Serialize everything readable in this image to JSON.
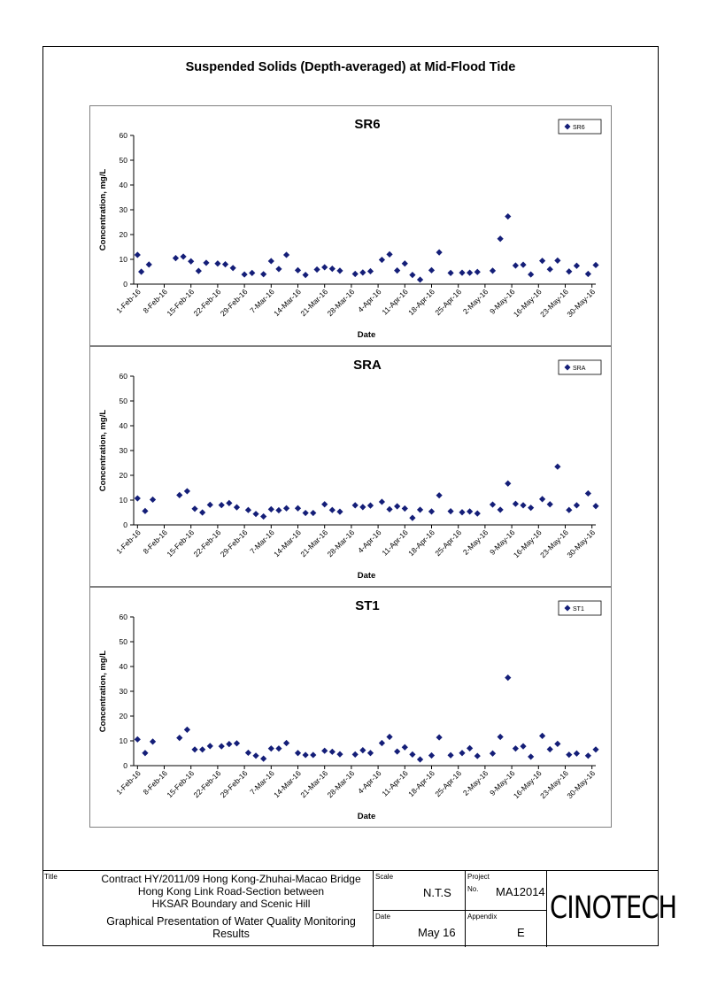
{
  "page_title": "Suspended Solids (Depth-averaged) at Mid-Flood Tide",
  "colors": {
    "marker": "#141e78",
    "axis": "#000000",
    "panel_border": "#808080"
  },
  "chart_data": [
    {
      "type": "scatter",
      "title": "SR6",
      "xlabel": "Date",
      "ylabel": "Concentration, mg/L",
      "ylim": [
        0,
        60
      ],
      "yticks": [
        "0",
        "10",
        "20",
        "30",
        "40",
        "50",
        "60"
      ],
      "xlim": [
        "2016-01-31",
        "2016-05-31"
      ],
      "xticks": [
        "1-Feb-16",
        "8-Feb-16",
        "15-Feb-16",
        "22-Feb-16",
        "29-Feb-16",
        "7-Mar-16",
        "14-Mar-16",
        "21-Mar-16",
        "28-Mar-16",
        "4-Apr-16",
        "11-Apr-16",
        "18-Apr-16",
        "25-Apr-16",
        "2-May-16",
        "9-May-16",
        "16-May-16",
        "23-May-16",
        "30-May-16"
      ],
      "legend": "top-right",
      "grid": false,
      "series": [
        {
          "name": "SR6",
          "x": [
            "2016-02-01",
            "2016-02-02",
            "2016-02-04",
            "2016-02-11",
            "2016-02-13",
            "2016-02-15",
            "2016-02-17",
            "2016-02-19",
            "2016-02-22",
            "2016-02-24",
            "2016-02-26",
            "2016-02-29",
            "2016-03-02",
            "2016-03-05",
            "2016-03-07",
            "2016-03-09",
            "2016-03-11",
            "2016-03-14",
            "2016-03-16",
            "2016-03-19",
            "2016-03-21",
            "2016-03-23",
            "2016-03-25",
            "2016-03-29",
            "2016-03-31",
            "2016-04-02",
            "2016-04-05",
            "2016-04-07",
            "2016-04-09",
            "2016-04-11",
            "2016-04-13",
            "2016-04-15",
            "2016-04-18",
            "2016-04-20",
            "2016-04-23",
            "2016-04-26",
            "2016-04-28",
            "2016-04-30",
            "2016-05-04",
            "2016-05-06",
            "2016-05-08",
            "2016-05-10",
            "2016-05-12",
            "2016-05-14",
            "2016-05-17",
            "2016-05-19",
            "2016-05-21",
            "2016-05-24",
            "2016-05-26",
            "2016-05-29",
            "2016-05-31"
          ],
          "y": [
            11.8,
            5.0,
            7.9,
            10.5,
            11.1,
            9.2,
            5.3,
            8.6,
            8.3,
            8.0,
            6.5,
            3.9,
            4.5,
            4.0,
            9.3,
            6.1,
            11.8,
            5.6,
            3.7,
            5.9,
            6.8,
            6.2,
            5.4,
            4.1,
            4.7,
            5.2,
            9.8,
            12.0,
            5.5,
            8.3,
            3.7,
            1.8,
            5.6,
            12.8,
            4.5,
            4.6,
            4.6,
            4.9,
            5.4,
            18.3,
            27.3,
            7.5,
            7.8,
            3.9,
            9.4,
            6.0,
            9.5,
            5.1,
            7.4,
            4.1,
            7.7
          ]
        }
      ]
    },
    {
      "type": "scatter",
      "title": "SRA",
      "xlabel": "Date",
      "ylabel": "Concentration, mg/L",
      "ylim": [
        0,
        60
      ],
      "yticks": [
        "0",
        "10",
        "20",
        "30",
        "40",
        "50",
        "60"
      ],
      "xlim": [
        "2016-01-31",
        "2016-05-31"
      ],
      "xticks": [
        "1-Feb-16",
        "8-Feb-16",
        "15-Feb-16",
        "22-Feb-16",
        "29-Feb-16",
        "7-Mar-16",
        "14-Mar-16",
        "21-Mar-16",
        "28-Mar-16",
        "4-Apr-16",
        "11-Apr-16",
        "18-Apr-16",
        "25-Apr-16",
        "2-May-16",
        "9-May-16",
        "16-May-16",
        "23-May-16",
        "30-May-16"
      ],
      "legend": "top-right",
      "grid": false,
      "series": [
        {
          "name": "SRA",
          "x": [
            "2016-02-01",
            "2016-02-03",
            "2016-02-05",
            "2016-02-12",
            "2016-02-14",
            "2016-02-16",
            "2016-02-18",
            "2016-02-20",
            "2016-02-23",
            "2016-02-25",
            "2016-02-27",
            "2016-03-01",
            "2016-03-03",
            "2016-03-05",
            "2016-03-07",
            "2016-03-09",
            "2016-03-11",
            "2016-03-14",
            "2016-03-16",
            "2016-03-18",
            "2016-03-21",
            "2016-03-23",
            "2016-03-25",
            "2016-03-29",
            "2016-03-31",
            "2016-04-02",
            "2016-04-05",
            "2016-04-07",
            "2016-04-09",
            "2016-04-11",
            "2016-04-13",
            "2016-04-15",
            "2016-04-18",
            "2016-04-20",
            "2016-04-23",
            "2016-04-26",
            "2016-04-28",
            "2016-04-30",
            "2016-05-04",
            "2016-05-06",
            "2016-05-08",
            "2016-05-10",
            "2016-05-12",
            "2016-05-14",
            "2016-05-17",
            "2016-05-19",
            "2016-05-21",
            "2016-05-24",
            "2016-05-26",
            "2016-05-29",
            "2016-05-31"
          ],
          "y": [
            10.7,
            5.6,
            10.2,
            12.0,
            13.6,
            6.5,
            5.0,
            8.1,
            8.0,
            8.8,
            7.1,
            6.0,
            4.4,
            3.4,
            6.3,
            5.9,
            6.7,
            6.7,
            4.8,
            4.8,
            8.3,
            6.0,
            5.3,
            7.9,
            7.2,
            7.8,
            9.3,
            6.3,
            7.5,
            6.6,
            2.8,
            6.1,
            5.4,
            11.9,
            5.5,
            5.1,
            5.4,
            4.6,
            8.2,
            6.1,
            16.7,
            8.5,
            7.9,
            6.9,
            10.4,
            8.3,
            23.5,
            6.0,
            7.9,
            12.7,
            7.6
          ]
        }
      ]
    },
    {
      "type": "scatter",
      "title": "ST1",
      "xlabel": "Date",
      "ylabel": "Concentration, mg/L",
      "ylim": [
        0,
        60
      ],
      "yticks": [
        "0",
        "10",
        "20",
        "30",
        "40",
        "50",
        "60"
      ],
      "xlim": [
        "2016-01-31",
        "2016-05-31"
      ],
      "xticks": [
        "1-Feb-16",
        "8-Feb-16",
        "15-Feb-16",
        "22-Feb-16",
        "29-Feb-16",
        "7-Mar-16",
        "14-Mar-16",
        "21-Mar-16",
        "28-Mar-16",
        "4-Apr-16",
        "11-Apr-16",
        "18-Apr-16",
        "25-Apr-16",
        "2-May-16",
        "9-May-16",
        "16-May-16",
        "23-May-16",
        "30-May-16"
      ],
      "legend": "top-right",
      "grid": false,
      "series": [
        {
          "name": "ST1",
          "x": [
            "2016-02-01",
            "2016-02-03",
            "2016-02-05",
            "2016-02-12",
            "2016-02-14",
            "2016-02-16",
            "2016-02-18",
            "2016-02-20",
            "2016-02-23",
            "2016-02-25",
            "2016-02-27",
            "2016-03-01",
            "2016-03-03",
            "2016-03-05",
            "2016-03-07",
            "2016-03-09",
            "2016-03-11",
            "2016-03-14",
            "2016-03-16",
            "2016-03-18",
            "2016-03-21",
            "2016-03-23",
            "2016-03-25",
            "2016-03-29",
            "2016-03-31",
            "2016-04-02",
            "2016-04-05",
            "2016-04-07",
            "2016-04-09",
            "2016-04-11",
            "2016-04-13",
            "2016-04-15",
            "2016-04-18",
            "2016-04-20",
            "2016-04-23",
            "2016-04-26",
            "2016-04-28",
            "2016-04-30",
            "2016-05-04",
            "2016-05-06",
            "2016-05-08",
            "2016-05-10",
            "2016-05-12",
            "2016-05-14",
            "2016-05-17",
            "2016-05-19",
            "2016-05-21",
            "2016-05-24",
            "2016-05-26",
            "2016-05-29",
            "2016-05-31"
          ],
          "y": [
            10.6,
            5.1,
            9.7,
            11.2,
            14.5,
            6.5,
            6.5,
            7.9,
            7.8,
            8.7,
            9.0,
            5.2,
            4.0,
            2.8,
            6.9,
            6.9,
            9.1,
            5.1,
            4.3,
            4.3,
            6.0,
            5.6,
            4.6,
            4.5,
            6.2,
            5.1,
            9.1,
            11.6,
            5.7,
            7.4,
            4.5,
            2.5,
            4.1,
            11.4,
            4.2,
            5.1,
            7.0,
            3.9,
            4.9,
            11.6,
            35.5,
            6.9,
            7.8,
            3.6,
            12.0,
            6.6,
            8.8,
            4.4,
            4.9,
            4.0,
            6.5
          ]
        }
      ]
    }
  ],
  "footer": {
    "title_label": "Title",
    "title_line1": "Contract HY/2011/09 Hong Kong-Zhuhai-Macao Bridge",
    "title_line2": "Hong Kong Link Road-Section between",
    "title_line3": "HKSAR Boundary and Scenic Hill",
    "subtitle_line1": "Graphical Presentation of Water Quality Monitoring",
    "subtitle_line2": "Results",
    "scale_label": "Scale",
    "scale_value": "N.T.S",
    "project_label": "Project",
    "no_label": "No.",
    "project_no": "MA12014",
    "date_label": "Date",
    "date_value": "May 16",
    "appendix_label": "Appendix",
    "appendix_value": "E",
    "logo_text": "CINOTECH"
  }
}
